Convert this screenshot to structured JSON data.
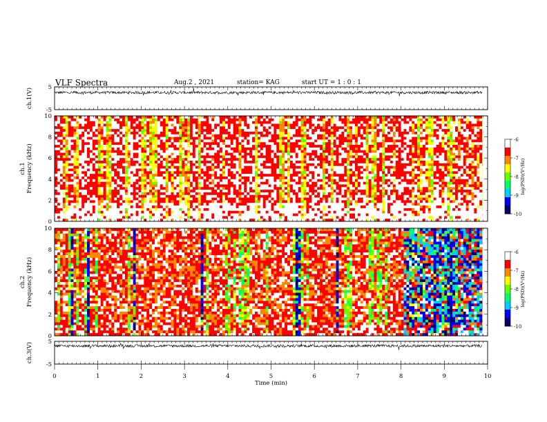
{
  "header": {
    "title": "VLF Spectra",
    "date": "Aug.2  , 2021",
    "station": "station= KAG",
    "start": "start  UT  =   1  : 0   : 1"
  },
  "chart_data": [
    {
      "type": "line",
      "panel": "ch1-waveform",
      "ylabel": "ch.1(V)",
      "ylim": [
        -5,
        5
      ],
      "yticks": [
        "5",
        "-5"
      ],
      "level": 2.5
    },
    {
      "type": "heatmap",
      "panel": "ch1-spectrogram",
      "ylabel": "ch.1\nFrequency (kHz)",
      "ylim": [
        0,
        10
      ],
      "yticks": [
        "0",
        "2",
        "4",
        "6",
        "8",
        "10"
      ],
      "xlim": [
        0,
        10
      ],
      "colorbar": {
        "label": "log(PSD)(V²/Hz)",
        "min": -10,
        "max": -6,
        "ticks": [
          "-6",
          "-7",
          "-8",
          "-9",
          "-10"
        ]
      },
      "dominant": "red",
      "palette": [
        "#000066",
        "#0000ff",
        "#00ccff",
        "#00ff66",
        "#66ff00",
        "#ffff00",
        "#ff8800",
        "#ff0000",
        "#ffffff"
      ]
    },
    {
      "type": "heatmap",
      "panel": "ch2-spectrogram",
      "ylabel": "ch.2\nFrequency (kHz)",
      "ylim": [
        0,
        10
      ],
      "yticks": [
        "0",
        "2",
        "4",
        "6",
        "8",
        "10"
      ],
      "xlim": [
        0,
        10
      ],
      "colorbar": {
        "label": "log(PSD)(V²/Hz)",
        "min": -10,
        "max": -6,
        "ticks": [
          "-6",
          "-7",
          "-8",
          "-9",
          "-10"
        ]
      },
      "dominant": "mixed",
      "palette": [
        "#000066",
        "#0000ff",
        "#00ccff",
        "#00ff66",
        "#66ff00",
        "#ffff00",
        "#ff8800",
        "#ff0000",
        "#ffffff"
      ]
    },
    {
      "type": "line",
      "panel": "ch3-waveform",
      "ylabel": "ch.3(V)",
      "ylim": [
        -5,
        5
      ],
      "yticks": [
        "5",
        "-5"
      ],
      "level": 3.0,
      "xlabel": "Time  (min)",
      "xticks": [
        "0",
        "1",
        "2",
        "3",
        "4",
        "5",
        "6",
        "7",
        "8",
        "9",
        "10"
      ]
    }
  ]
}
